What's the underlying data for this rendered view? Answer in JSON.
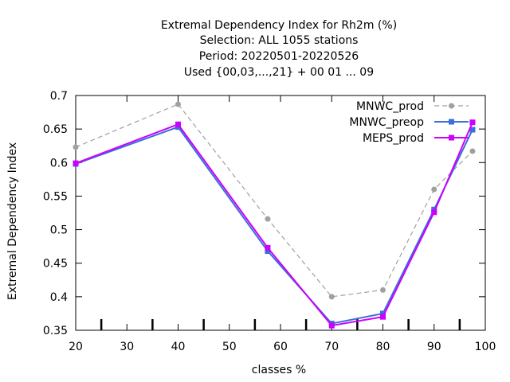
{
  "chart_data": {
    "type": "line",
    "title_lines": [
      "Extremal Dependency Index  for Rh2m (%)",
      "Selection: ALL    1055 stations",
      "Period: 20220501-20220526",
      "Used {00,03,...,21} + 00 01 ... 09"
    ],
    "xlabel": "classes %",
    "ylabel": "Extremal Dependency Index",
    "xlim": [
      20,
      100
    ],
    "ylim": [
      0.35,
      0.7
    ],
    "x_ticks": [
      20,
      30,
      40,
      50,
      60,
      70,
      80,
      90,
      100
    ],
    "y_ticks": [
      0.35,
      0.4,
      0.45,
      0.5,
      0.55,
      0.6,
      0.65,
      0.7
    ],
    "y_tick_labels": [
      "0.35",
      "0.4",
      "0.45",
      "0.5",
      "0.55",
      "0.6",
      "0.65",
      "0.7"
    ],
    "bottom_axis_extra_ticks": [
      25,
      35,
      45,
      55,
      65,
      75,
      85,
      95
    ],
    "grid": false,
    "legend_position": "top-right",
    "series": [
      {
        "name": "MNWC_prod",
        "color": "#a0a0a0",
        "dashed": true,
        "marker": "circle",
        "x": [
          20,
          40,
          57.5,
          70,
          80,
          90,
          97.5
        ],
        "y": [
          0.623,
          0.687,
          0.516,
          0.4,
          0.41,
          0.56,
          0.617
        ]
      },
      {
        "name": "MNWC_preop",
        "color": "#3a6fd8",
        "dashed": false,
        "marker": "square",
        "x": [
          20,
          40,
          57.5,
          70,
          80,
          90,
          97.5
        ],
        "y": [
          0.598,
          0.653,
          0.468,
          0.36,
          0.375,
          0.53,
          0.649
        ]
      },
      {
        "name": "MEPS_prod",
        "color": "#cc00ff",
        "dashed": false,
        "marker": "square",
        "x": [
          20,
          40,
          57.5,
          70,
          80,
          90,
          97.5
        ],
        "y": [
          0.599,
          0.657,
          0.473,
          0.357,
          0.37,
          0.526,
          0.66
        ]
      }
    ]
  }
}
